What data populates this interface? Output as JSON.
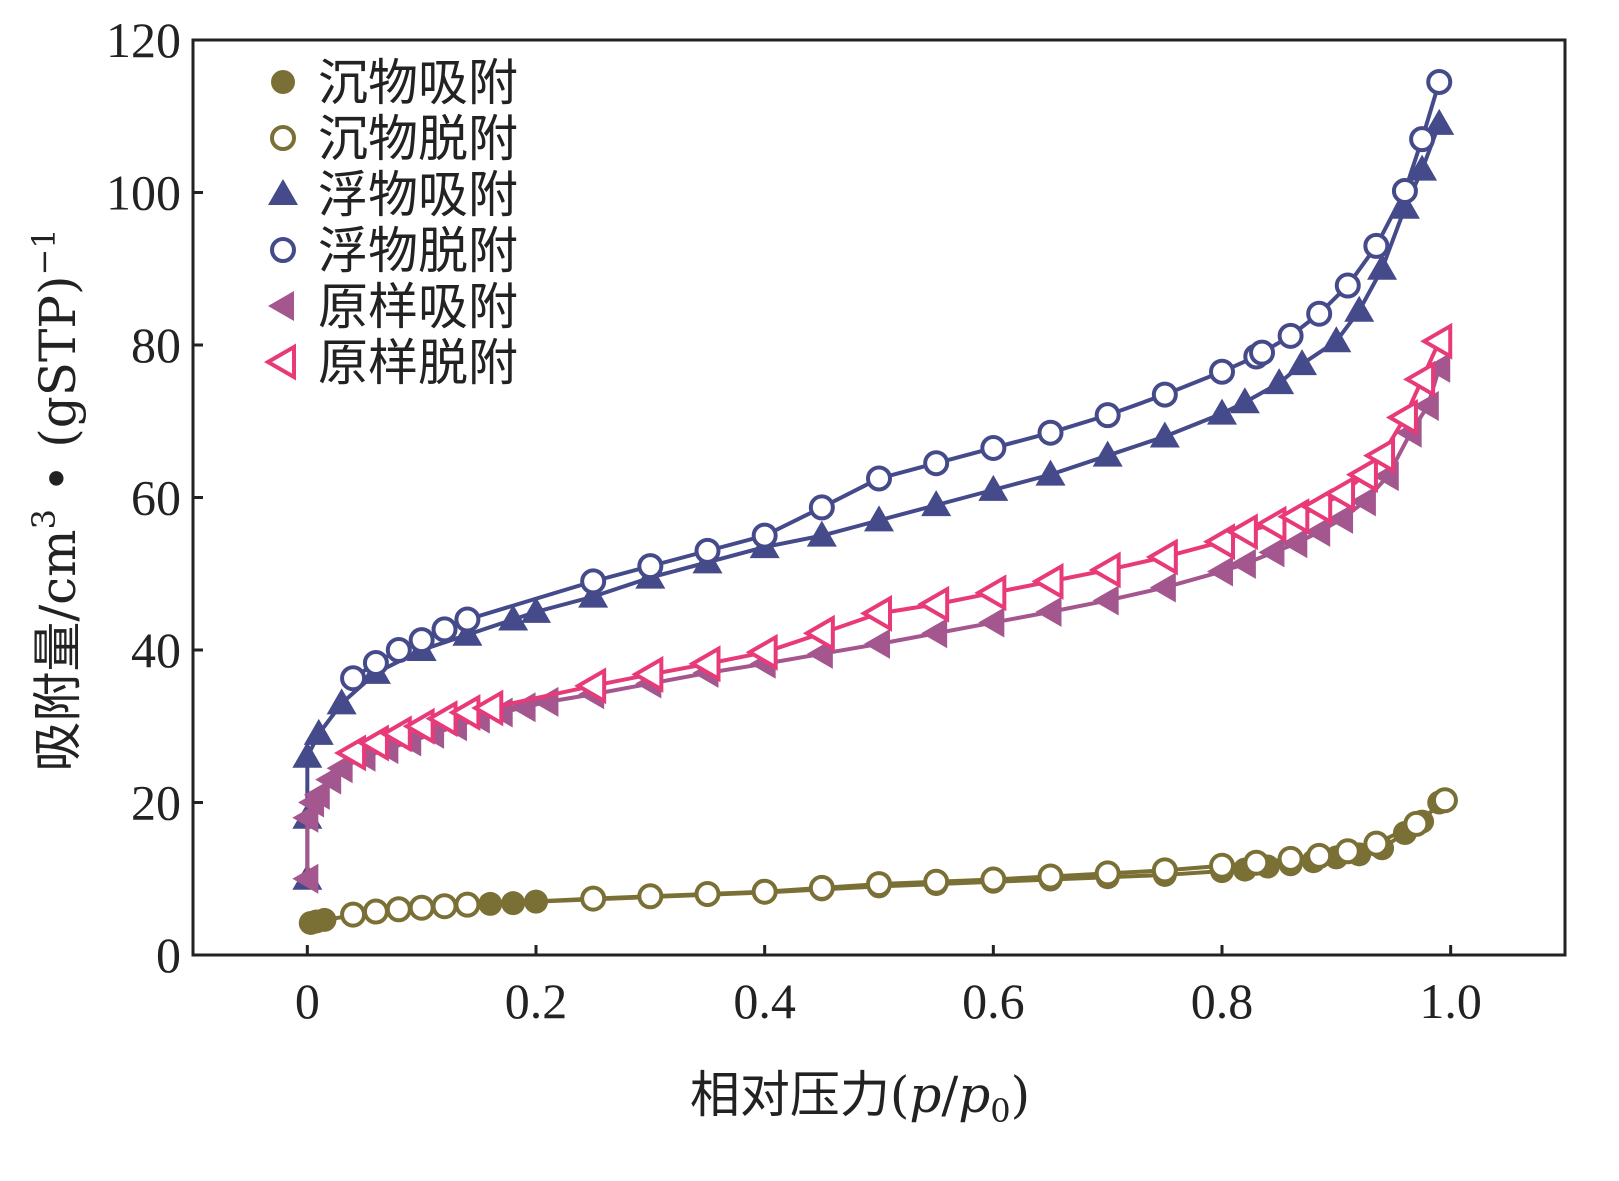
{
  "chart_data": {
    "type": "line",
    "title": "",
    "xlabel": {
      "prefix": "相对压力",
      "open": "(",
      "p": "p",
      "slash": "/",
      "p0": "p",
      "sub": "0",
      "close": ")"
    },
    "ylabel": {
      "main": "吸附量/cm",
      "sup3": "3",
      "dot": " • ",
      "unit": "(gSTP)",
      "sup": "−1"
    },
    "xlim": [
      -0.1,
      1.1
    ],
    "ylim": [
      0,
      120
    ],
    "xticks": [
      0,
      0.2,
      0.4,
      0.6,
      0.8,
      1.0
    ],
    "xtick_labels": [
      "0",
      "0.2",
      "0.4",
      "0.6",
      "0.8",
      "1.0"
    ],
    "yticks": [
      0,
      20,
      40,
      60,
      80,
      100,
      120
    ],
    "ytick_labels": [
      "0",
      "20",
      "40",
      "60",
      "80",
      "100",
      "120"
    ],
    "grid": false,
    "legend_position": "top-left",
    "series": [
      {
        "name": "沉物吸附",
        "color": "#7a7035",
        "marker": "circle-filled",
        "x": [
          0.003,
          0.008,
          0.015,
          0.04,
          0.06,
          0.08,
          0.1,
          0.12,
          0.14,
          0.16,
          0.18,
          0.2,
          0.25,
          0.3,
          0.35,
          0.4,
          0.45,
          0.5,
          0.55,
          0.6,
          0.65,
          0.7,
          0.75,
          0.8,
          0.82,
          0.84,
          0.86,
          0.88,
          0.9,
          0.92,
          0.94,
          0.96,
          0.975,
          0.99
        ],
        "y": [
          4.2,
          4.4,
          4.6,
          5.2,
          5.6,
          5.9,
          6.1,
          6.3,
          6.5,
          6.7,
          6.8,
          7.0,
          7.3,
          7.6,
          7.9,
          8.2,
          8.6,
          9.0,
          9.3,
          9.6,
          9.9,
          10.2,
          10.5,
          11.0,
          11.2,
          11.6,
          11.9,
          12.3,
          12.8,
          13.2,
          14.0,
          16.0,
          17.5,
          20.0
        ]
      },
      {
        "name": "沉物脱附",
        "color": "#7a7035",
        "marker": "circle-open",
        "x": [
          0.04,
          0.06,
          0.08,
          0.1,
          0.12,
          0.14,
          0.25,
          0.3,
          0.35,
          0.4,
          0.45,
          0.5,
          0.55,
          0.6,
          0.65,
          0.7,
          0.75,
          0.8,
          0.83,
          0.86,
          0.885,
          0.91,
          0.935,
          0.97,
          0.995
        ],
        "y": [
          5.3,
          5.7,
          6.0,
          6.2,
          6.4,
          6.6,
          7.4,
          7.7,
          8.0,
          8.3,
          8.8,
          9.3,
          9.6,
          9.9,
          10.3,
          10.7,
          11.1,
          11.7,
          12.1,
          12.6,
          13.0,
          13.6,
          14.6,
          17.2,
          20.3
        ]
      },
      {
        "name": "浮物吸附",
        "color": "#454b8a",
        "marker": "triangle-up-filled",
        "x": [
          0.0,
          0.0,
          0.0,
          0.01,
          0.03,
          0.06,
          0.1,
          0.14,
          0.18,
          0.2,
          0.25,
          0.3,
          0.35,
          0.4,
          0.45,
          0.5,
          0.55,
          0.6,
          0.65,
          0.7,
          0.75,
          0.8,
          0.82,
          0.85,
          0.87,
          0.9,
          0.92,
          0.94,
          0.96,
          0.975,
          0.99
        ],
        "y": [
          10,
          18,
          26,
          29,
          33,
          37,
          40,
          42,
          44,
          45,
          47,
          49.5,
          51.5,
          53.5,
          55,
          57,
          59,
          61,
          63,
          65.5,
          68,
          71,
          72.5,
          75,
          77.5,
          80.5,
          84.5,
          90,
          98,
          103,
          109
        ]
      },
      {
        "name": "浮物脱附",
        "color": "#454b8a",
        "marker": "circle-open",
        "x": [
          0.04,
          0.06,
          0.08,
          0.1,
          0.12,
          0.14,
          0.25,
          0.3,
          0.35,
          0.4,
          0.45,
          0.5,
          0.55,
          0.6,
          0.65,
          0.7,
          0.75,
          0.8,
          0.83,
          0.835,
          0.86,
          0.885,
          0.91,
          0.935,
          0.96,
          0.975,
          0.99
        ],
        "y": [
          36.3,
          38.3,
          40,
          41.3,
          42.7,
          44,
          49,
          51,
          53,
          55,
          58.7,
          62.5,
          64.5,
          66.5,
          68.5,
          70.8,
          73.5,
          76.5,
          78.5,
          79,
          81.2,
          84.1,
          87.8,
          93,
          100.2,
          107,
          114.5
        ]
      },
      {
        "name": "原样吸附",
        "color": "#a4578f",
        "marker": "triangle-left-filled",
        "x": [
          0.0,
          0.0,
          0.005,
          0.01,
          0.02,
          0.03,
          0.05,
          0.07,
          0.09,
          0.11,
          0.13,
          0.15,
          0.17,
          0.19,
          0.21,
          0.25,
          0.3,
          0.35,
          0.4,
          0.45,
          0.5,
          0.55,
          0.6,
          0.65,
          0.7,
          0.75,
          0.8,
          0.82,
          0.845,
          0.865,
          0.885,
          0.905,
          0.925,
          0.945,
          0.965,
          0.98,
          0.99
        ],
        "y": [
          10,
          18,
          20,
          21,
          23,
          24.5,
          26,
          27,
          28,
          29,
          30,
          31,
          31.8,
          32.5,
          33.2,
          34.2,
          35.6,
          37,
          38.2,
          39.5,
          40.8,
          42.2,
          43.6,
          45,
          46.5,
          48.2,
          50.3,
          51.3,
          52.8,
          54,
          55.5,
          57.2,
          59.5,
          62.8,
          68.5,
          72,
          77
        ]
      },
      {
        "name": "原样脱附",
        "color": "#e83a78",
        "marker": "triangle-left-open",
        "x": [
          0.04,
          0.06,
          0.08,
          0.1,
          0.12,
          0.14,
          0.16,
          0.25,
          0.3,
          0.35,
          0.4,
          0.45,
          0.5,
          0.55,
          0.6,
          0.65,
          0.7,
          0.75,
          0.8,
          0.82,
          0.845,
          0.865,
          0.885,
          0.905,
          0.925,
          0.94,
          0.96,
          0.975,
          0.99
        ],
        "y": [
          26.5,
          27.8,
          29,
          30,
          31,
          31.8,
          32.4,
          35.3,
          36.8,
          38.2,
          39.7,
          42.2,
          44.8,
          46,
          47.5,
          49,
          50.5,
          52.2,
          54.2,
          55.5,
          56.5,
          57.5,
          58.8,
          60.5,
          63,
          65.5,
          70.5,
          75.5,
          80.5
        ]
      }
    ]
  }
}
